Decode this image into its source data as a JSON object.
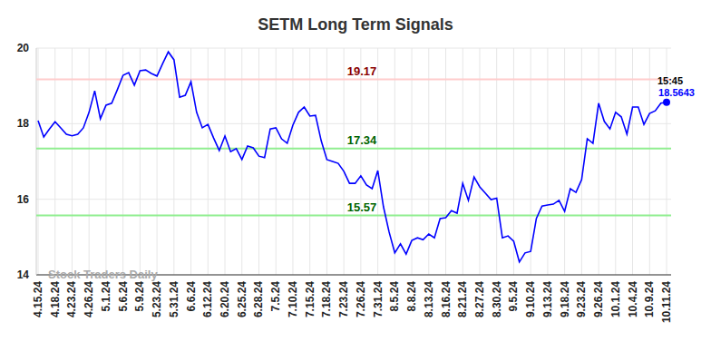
{
  "chart_data": {
    "type": "line",
    "title": "SETM Long Term Signals",
    "categories": [
      "4.15.24",
      null,
      null,
      "4.18.24",
      null,
      null,
      "4.23.24",
      null,
      null,
      "4.26.24",
      null,
      null,
      "5.1.24",
      null,
      null,
      "5.6.24",
      null,
      null,
      "5.9.24",
      null,
      null,
      "5.23.24",
      null,
      null,
      "5.31.24",
      null,
      null,
      "6.6.24",
      null,
      null,
      "6.12.24",
      null,
      null,
      "6.20.24",
      null,
      null,
      "6.25.24",
      null,
      null,
      "6.28.24",
      null,
      null,
      "7.5.24",
      null,
      null,
      "7.10.24",
      null,
      null,
      "7.15.24",
      null,
      null,
      "7.18.24",
      null,
      null,
      "7.23.24",
      null,
      null,
      "7.26.24",
      null,
      null,
      "7.31.24",
      null,
      null,
      "8.5.24",
      null,
      null,
      "8.8.24",
      null,
      null,
      "8.13.24",
      null,
      null,
      "8.16.24",
      null,
      null,
      "8.21.24",
      null,
      null,
      "8.27.24",
      null,
      null,
      "8.30.24",
      null,
      null,
      "9.5.24",
      null,
      null,
      "9.10.24",
      null,
      null,
      "9.13.24",
      null,
      null,
      "9.18.24",
      null,
      null,
      "9.23.24",
      null,
      null,
      "9.26.24",
      null,
      null,
      "10.1.24",
      null,
      null,
      "10.4.24",
      null,
      null,
      "10.9.24",
      null,
      null,
      "10.11.24"
    ],
    "values": [
      18.08,
      17.65,
      17.86,
      18.05,
      17.89,
      17.72,
      17.68,
      17.72,
      17.89,
      18.3,
      18.87,
      18.13,
      18.49,
      18.54,
      18.9,
      19.28,
      19.35,
      19.02,
      19.4,
      19.42,
      19.33,
      19.26,
      19.59,
      19.9,
      19.69,
      18.7,
      18.75,
      19.11,
      18.3,
      17.89,
      17.98,
      17.62,
      17.29,
      17.67,
      17.26,
      17.34,
      17.05,
      17.41,
      17.36,
      17.14,
      17.1,
      17.86,
      17.89,
      17.6,
      17.48,
      17.96,
      18.3,
      18.44,
      18.2,
      18.22,
      17.55,
      17.05,
      17.0,
      16.95,
      16.74,
      16.42,
      16.42,
      16.62,
      16.38,
      16.28,
      16.76,
      15.8,
      15.13,
      14.58,
      14.82,
      14.55,
      14.91,
      14.98,
      14.93,
      15.08,
      14.98,
      15.49,
      15.51,
      15.7,
      15.63,
      16.42,
      15.97,
      16.59,
      16.33,
      16.16,
      15.99,
      16.03,
      14.98,
      15.03,
      14.89,
      14.34,
      14.58,
      14.62,
      15.49,
      15.82,
      15.85,
      15.87,
      15.97,
      15.68,
      16.28,
      16.18,
      16.52,
      17.6,
      17.48,
      18.54,
      18.06,
      17.86,
      18.3,
      18.18,
      17.72,
      18.44,
      18.44,
      17.98,
      18.27,
      18.34,
      18.54,
      18.5643
    ],
    "color": "#0000ff",
    "ylim": [
      14,
      20
    ],
    "yticks": [
      14,
      16,
      18,
      20
    ],
    "grid": true,
    "annotations": [
      {
        "value": 19.17,
        "label": "19.17",
        "color": "#ffcccc",
        "text_color": "#8b0000"
      },
      {
        "value": 17.34,
        "label": "17.34",
        "color": "#90ee90",
        "text_color": "#006400"
      },
      {
        "value": 15.57,
        "label": "15.57",
        "color": "#90ee90",
        "text_color": "#006400"
      }
    ],
    "last_point_time": "15:45",
    "watermark": "Stock Traders Daily"
  }
}
